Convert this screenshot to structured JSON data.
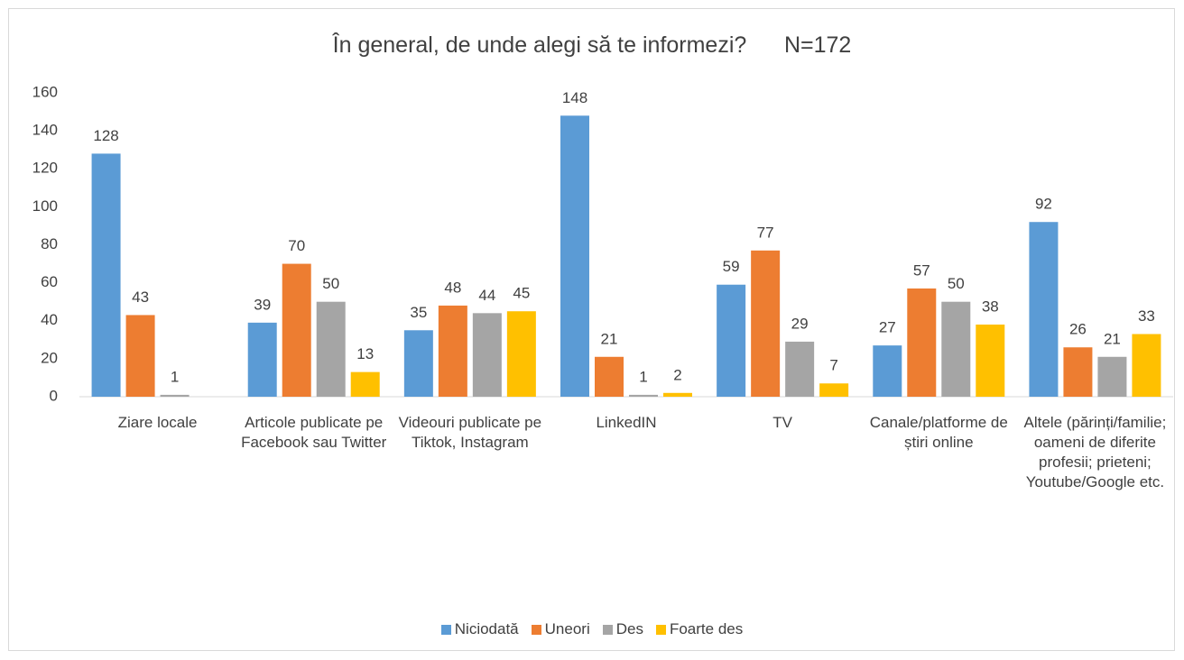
{
  "chart_data": {
    "type": "bar",
    "title": "În general, de unde alegi să te informezi?      N=172",
    "categories": [
      "Ziare locale",
      "Articole publicate pe Facebook sau Twitter",
      "Videouri publicate pe Tiktok, Instagram",
      "LinkedIN",
      "TV",
      "Canale/platforme de știri online",
      "Altele (părinți/familie; oameni de diferite profesii; prieteni; Youtube/Google etc."
    ],
    "series": [
      {
        "name": "Niciodată",
        "color": "#5b9bd5",
        "values": [
          128,
          39,
          35,
          148,
          59,
          27,
          92
        ]
      },
      {
        "name": "Uneori",
        "color": "#ed7d31",
        "values": [
          43,
          70,
          48,
          21,
          77,
          57,
          26
        ]
      },
      {
        "name": "Des",
        "color": "#a5a5a5",
        "values": [
          1,
          50,
          44,
          1,
          29,
          50,
          21
        ]
      },
      {
        "name": "Foarte des",
        "color": "#ffc000",
        "values": [
          null,
          13,
          45,
          2,
          7,
          38,
          33
        ]
      }
    ],
    "ylim": [
      0,
      160
    ],
    "yticks": [
      0,
      20,
      40,
      60,
      80,
      100,
      120,
      140,
      160
    ],
    "grid": false,
    "legend": "bottom"
  }
}
